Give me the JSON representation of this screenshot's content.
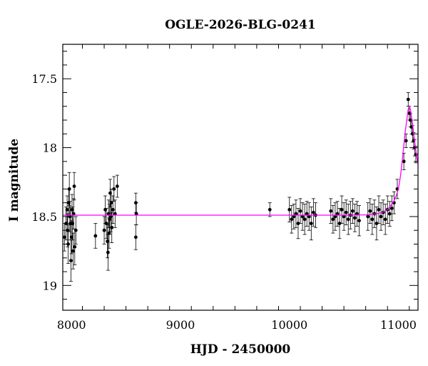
{
  "chart_data": {
    "type": "scatter",
    "title": "OGLE-2026-BLG-0241",
    "xlabel": "HJD - 2450000",
    "ylabel": "I magnitude",
    "xlim": [
      7920,
      11180
    ],
    "ylim": [
      19.18,
      17.25
    ],
    "y_inverted": true,
    "grid": false,
    "legend": "none",
    "x_ticks": [
      8000,
      9000,
      10000,
      11000
    ],
    "x_tick_labels": [
      "8000",
      "9000",
      "10000",
      "11000"
    ],
    "y_ticks": [
      17.5,
      18,
      18.5,
      19
    ],
    "y_tick_labels": [
      "17.5",
      "18",
      "18.5",
      "19"
    ],
    "series": [
      {
        "kind": "observations",
        "color": "#000000",
        "x": [
          7935,
          7950,
          7960,
          7965,
          7970,
          7975,
          7980,
          7985,
          7990,
          7995,
          8000,
          8005,
          8010,
          8015,
          8020,
          8025,
          8030,
          8040,
          8220,
          8300,
          8310,
          8320,
          8330,
          8335,
          8340,
          8345,
          8350,
          8355,
          8360,
          8365,
          8370,
          8380,
          8390,
          8400,
          8420,
          8590,
          8590,
          8595,
          9820,
          10000,
          10020,
          10040,
          10060,
          10080,
          10100,
          10120,
          10140,
          10160,
          10180,
          10200,
          10220,
          10240,
          10380,
          10400,
          10420,
          10440,
          10460,
          10480,
          10500,
          10520,
          10540,
          10560,
          10580,
          10600,
          10620,
          10640,
          10720,
          10740,
          10760,
          10780,
          10800,
          10820,
          10840,
          10860,
          10880,
          10900,
          10920,
          10940,
          10960,
          10990,
          11050,
          11070,
          11090,
          11100,
          11110,
          11120,
          11130,
          11140,
          11150,
          11160
        ],
        "y": [
          18.65,
          18.55,
          18.45,
          18.6,
          18.7,
          18.4,
          18.3,
          18.5,
          18.55,
          18.82,
          18.65,
          18.45,
          18.55,
          18.75,
          18.48,
          18.28,
          18.72,
          18.6,
          18.64,
          18.6,
          18.45,
          18.55,
          18.68,
          18.76,
          18.48,
          18.62,
          18.52,
          18.33,
          18.5,
          18.4,
          18.58,
          18.45,
          18.3,
          18.48,
          18.28,
          18.4,
          18.65,
          18.48,
          18.45,
          18.45,
          18.52,
          18.5,
          18.48,
          18.55,
          18.46,
          18.5,
          18.52,
          18.48,
          18.5,
          18.55,
          18.47,
          18.49,
          18.46,
          18.52,
          18.5,
          18.48,
          18.55,
          18.45,
          18.5,
          18.47,
          18.52,
          18.49,
          18.46,
          18.51,
          18.48,
          18.53,
          18.5,
          18.46,
          18.52,
          18.48,
          18.55,
          18.45,
          18.5,
          18.47,
          18.52,
          18.45,
          18.48,
          18.44,
          18.4,
          18.3,
          18.1,
          17.95,
          17.65,
          17.75,
          17.8,
          17.85,
          17.9,
          17.95,
          18.0,
          18.05
        ],
        "errors": [
          0.1,
          0.12,
          0.1,
          0.12,
          0.14,
          0.1,
          0.12,
          0.11,
          0.12,
          0.15,
          0.12,
          0.11,
          0.12,
          0.13,
          0.11,
          0.1,
          0.13,
          0.1,
          0.09,
          0.1,
          0.1,
          0.11,
          0.12,
          0.13,
          0.1,
          0.11,
          0.11,
          0.1,
          0.11,
          0.1,
          0.11,
          0.1,
          0.09,
          0.1,
          0.08,
          0.07,
          0.09,
          0.08,
          0.05,
          0.09,
          0.1,
          0.09,
          0.1,
          0.11,
          0.09,
          0.1,
          0.11,
          0.09,
          0.1,
          0.12,
          0.1,
          0.09,
          0.09,
          0.1,
          0.1,
          0.09,
          0.11,
          0.1,
          0.1,
          0.09,
          0.11,
          0.1,
          0.09,
          0.1,
          0.09,
          0.11,
          0.1,
          0.09,
          0.11,
          0.1,
          0.12,
          0.1,
          0.1,
          0.09,
          0.11,
          0.1,
          0.09,
          0.09,
          0.08,
          0.07,
          0.06,
          0.05,
          0.05,
          0.05,
          0.05,
          0.05,
          0.06,
          0.06,
          0.06,
          0.06
        ]
      },
      {
        "kind": "model",
        "color": "#ff00ff",
        "x": [
          7920,
          8500,
          9000,
          9500,
          10000,
          10500,
          10700,
          10800,
          10850,
          10900,
          10950,
          10980,
          11000,
          11020,
          11040,
          11060,
          11080,
          11090,
          11100,
          11110,
          11120,
          11130,
          11140,
          11160,
          11180
        ],
        "y": [
          18.49,
          18.49,
          18.49,
          18.49,
          18.49,
          18.49,
          18.488,
          18.48,
          18.47,
          18.45,
          18.4,
          18.35,
          18.3,
          18.2,
          18.06,
          17.9,
          17.78,
          17.72,
          17.7,
          17.72,
          17.77,
          17.83,
          17.9,
          18.02,
          18.12
        ]
      }
    ]
  }
}
